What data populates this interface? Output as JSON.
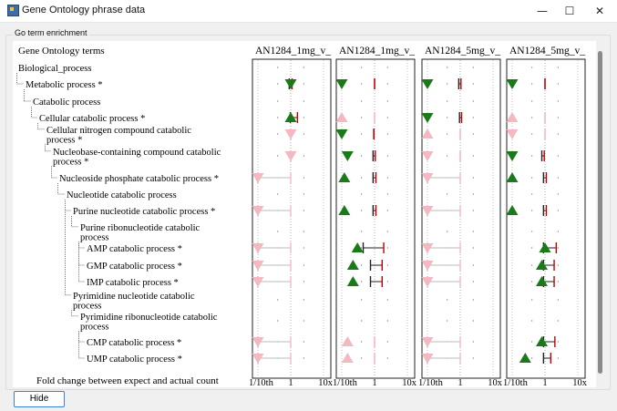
{
  "window": {
    "title": "Gene Ontology phrase data",
    "minimize_icon": "minimize-icon",
    "maximize_icon": "maximize-icon",
    "close_icon": "close-icon",
    "minimize_glyph": "—",
    "maximize_glyph": "☐",
    "close_glyph": "✕"
  },
  "group_label": "Go term enrichment",
  "terms_header": "Gene Ontology terms",
  "footer_label": "Fold change between expect and actual count",
  "axis_ticks": [
    "1/10th",
    "1",
    "10x"
  ],
  "hide_button": "Hide",
  "colors": {
    "up": "#1a7a1a",
    "down_strong": "#1a7a1a",
    "faded": "#f4b8c0",
    "err": "#c00000",
    "grid": "#9a9a9a"
  },
  "columns": [
    {
      "label": "AN1284_1mg_v_",
      "marks": [
        {
          "row": 1,
          "type": "down",
          "faded": false,
          "v": 1.0,
          "lo": 0.9,
          "hi": 1.1
        },
        {
          "row": 3,
          "type": "up",
          "faded": false,
          "v": 1.0,
          "lo": 0.97,
          "hi": 1.6
        },
        {
          "row": 4,
          "type": "down",
          "faded": true,
          "v": 1.0,
          "lo": 1.0,
          "hi": 1.0
        },
        {
          "row": 5,
          "type": "down",
          "faded": true,
          "v": 1.0,
          "lo": 1.0,
          "hi": 1.0
        },
        {
          "row": 6,
          "type": "down",
          "faded": true,
          "v": 0.1,
          "lo": 0.1,
          "hi": 1.0
        },
        {
          "row": 8,
          "type": "down",
          "faded": true,
          "v": 0.1,
          "lo": 0.1,
          "hi": 1.0
        },
        {
          "row": 10,
          "type": "down",
          "faded": true,
          "v": 0.1,
          "lo": 0.1,
          "hi": 1.0
        },
        {
          "row": 11,
          "type": "down",
          "faded": true,
          "v": 0.1,
          "lo": 0.1,
          "hi": 1.0
        },
        {
          "row": 12,
          "type": "down",
          "faded": true,
          "v": 0.1,
          "lo": 0.1,
          "hi": 1.0
        },
        {
          "row": 15,
          "type": "down",
          "faded": true,
          "v": 0.1,
          "lo": 0.1,
          "hi": 1.0
        },
        {
          "row": 16,
          "type": "down",
          "faded": true,
          "v": 0.1,
          "lo": 0.1,
          "hi": 1.0
        }
      ]
    },
    {
      "label": "AN1284_1mg_v_",
      "marks": [
        {
          "row": 1,
          "type": "down",
          "faded": false,
          "v": 0.1,
          "lo": 1.0,
          "hi": 1.0
        },
        {
          "row": 3,
          "type": "up",
          "faded": true,
          "v": 0.1,
          "lo": 1.0,
          "hi": 1.0
        },
        {
          "row": 4,
          "type": "down",
          "faded": false,
          "v": 0.1,
          "lo": 0.95,
          "hi": 1.0
        },
        {
          "row": 5,
          "type": "down",
          "faded": false,
          "v": 0.15,
          "lo": 0.9,
          "hi": 1.05
        },
        {
          "row": 6,
          "type": "up",
          "faded": false,
          "v": 0.12,
          "lo": 0.9,
          "hi": 1.1
        },
        {
          "row": 8,
          "type": "up",
          "faded": false,
          "v": 0.12,
          "lo": 0.9,
          "hi": 1.1
        },
        {
          "row": 10,
          "type": "up",
          "faded": false,
          "v": 0.3,
          "lo": 0.45,
          "hi": 1.9
        },
        {
          "row": 11,
          "type": "up",
          "faded": false,
          "v": 0.22,
          "lo": 0.75,
          "hi": 1.7
        },
        {
          "row": 12,
          "type": "up",
          "faded": false,
          "v": 0.22,
          "lo": 0.75,
          "hi": 1.7
        },
        {
          "row": 15,
          "type": "up",
          "faded": true,
          "v": 0.15,
          "lo": 1.0,
          "hi": 1.0
        },
        {
          "row": 16,
          "type": "up",
          "faded": true,
          "v": 0.15,
          "lo": 1.0,
          "hi": 1.0
        }
      ]
    },
    {
      "label": "AN1284_5mg_v_",
      "marks": [
        {
          "row": 1,
          "type": "down",
          "faded": false,
          "v": 0.1,
          "lo": 0.9,
          "hi": 1.05
        },
        {
          "row": 3,
          "type": "down",
          "faded": false,
          "v": 0.1,
          "lo": 0.95,
          "hi": 1.1
        },
        {
          "row": 4,
          "type": "up",
          "faded": true,
          "v": 0.1,
          "lo": 1.0,
          "hi": 1.0
        },
        {
          "row": 5,
          "type": "down",
          "faded": true,
          "v": 0.1,
          "lo": 1.0,
          "hi": 1.0
        },
        {
          "row": 6,
          "type": "down",
          "faded": true,
          "v": 0.1,
          "lo": 0.1,
          "hi": 1.0
        },
        {
          "row": 8,
          "type": "down",
          "faded": true,
          "v": 0.1,
          "lo": 0.1,
          "hi": 1.0
        },
        {
          "row": 10,
          "type": "down",
          "faded": true,
          "v": 0.1,
          "lo": 0.1,
          "hi": 1.0
        },
        {
          "row": 11,
          "type": "down",
          "faded": true,
          "v": 0.1,
          "lo": 0.1,
          "hi": 1.0
        },
        {
          "row": 12,
          "type": "down",
          "faded": true,
          "v": 0.1,
          "lo": 0.1,
          "hi": 1.0
        },
        {
          "row": 15,
          "type": "down",
          "faded": true,
          "v": 0.1,
          "lo": 0.1,
          "hi": 1.0
        },
        {
          "row": 16,
          "type": "down",
          "faded": true,
          "v": 0.1,
          "lo": 0.1,
          "hi": 1.0
        }
      ]
    },
    {
      "label": "AN1284_5mg_v_",
      "marks": [
        {
          "row": 1,
          "type": "down",
          "faded": false,
          "v": 0.1,
          "lo": 1.0,
          "hi": 1.0
        },
        {
          "row": 3,
          "type": "up",
          "faded": true,
          "v": 0.1,
          "lo": 1.0,
          "hi": 1.0
        },
        {
          "row": 4,
          "type": "down",
          "faded": true,
          "v": 0.1,
          "lo": 1.0,
          "hi": 1.0
        },
        {
          "row": 5,
          "type": "down",
          "faded": false,
          "v": 0.1,
          "lo": 0.8,
          "hi": 0.95
        },
        {
          "row": 6,
          "type": "up",
          "faded": false,
          "v": 0.1,
          "lo": 0.9,
          "hi": 1.1
        },
        {
          "row": 8,
          "type": "up",
          "faded": false,
          "v": 0.1,
          "lo": 0.9,
          "hi": 1.1
        },
        {
          "row": 10,
          "type": "up",
          "faded": false,
          "v": 1.0,
          "lo": 0.9,
          "hi": 2.2
        },
        {
          "row": 11,
          "type": "up",
          "faded": false,
          "v": 0.8,
          "lo": 0.9,
          "hi": 1.9
        },
        {
          "row": 12,
          "type": "up",
          "faded": false,
          "v": 0.8,
          "lo": 0.9,
          "hi": 1.9
        },
        {
          "row": 15,
          "type": "up",
          "faded": false,
          "v": 0.8,
          "lo": 0.9,
          "hi": 2.0
        },
        {
          "row": 16,
          "type": "up",
          "faded": false,
          "v": 0.25,
          "lo": 0.9,
          "hi": 1.5
        }
      ]
    }
  ],
  "terms": [
    {
      "lines": [
        "Biological_process"
      ],
      "depth": 0
    },
    {
      "lines": [
        "Metabolic process *"
      ],
      "depth": 1
    },
    {
      "lines": [
        "Catabolic process"
      ],
      "depth": 2
    },
    {
      "lines": [
        "Cellular catabolic process *"
      ],
      "depth": 3
    },
    {
      "lines": [
        "Cellular nitrogen compound catabolic",
        "process *"
      ],
      "depth": 4
    },
    {
      "lines": [
        "Nucleobase-containing compound catabolic",
        "process *"
      ],
      "depth": 5
    },
    {
      "lines": [
        "Nucleoside phosphate catabolic process *"
      ],
      "depth": 6
    },
    {
      "lines": [
        "Nucleotide catabolic process"
      ],
      "depth": 7
    },
    {
      "lines": [
        "Purine nucleotide catabolic process *"
      ],
      "depth": 8
    },
    {
      "lines": [
        "Purine ribonucleotide catabolic",
        "process"
      ],
      "depth": 9
    },
    {
      "lines": [
        "AMP catabolic process *"
      ],
      "depth": 10
    },
    {
      "lines": [
        "GMP catabolic process *"
      ],
      "depth": 10
    },
    {
      "lines": [
        "IMP catabolic process *"
      ],
      "depth": 10
    },
    {
      "lines": [
        "Pyrimidine nucleotide catabolic",
        "process"
      ],
      "depth": 8
    },
    {
      "lines": [
        "Pyrimidine ribonucleotide catabolic",
        "process"
      ],
      "depth": 9
    },
    {
      "lines": [
        "CMP catabolic process *"
      ],
      "depth": 10
    },
    {
      "lines": [
        "UMP catabolic process *"
      ],
      "depth": 10
    }
  ]
}
